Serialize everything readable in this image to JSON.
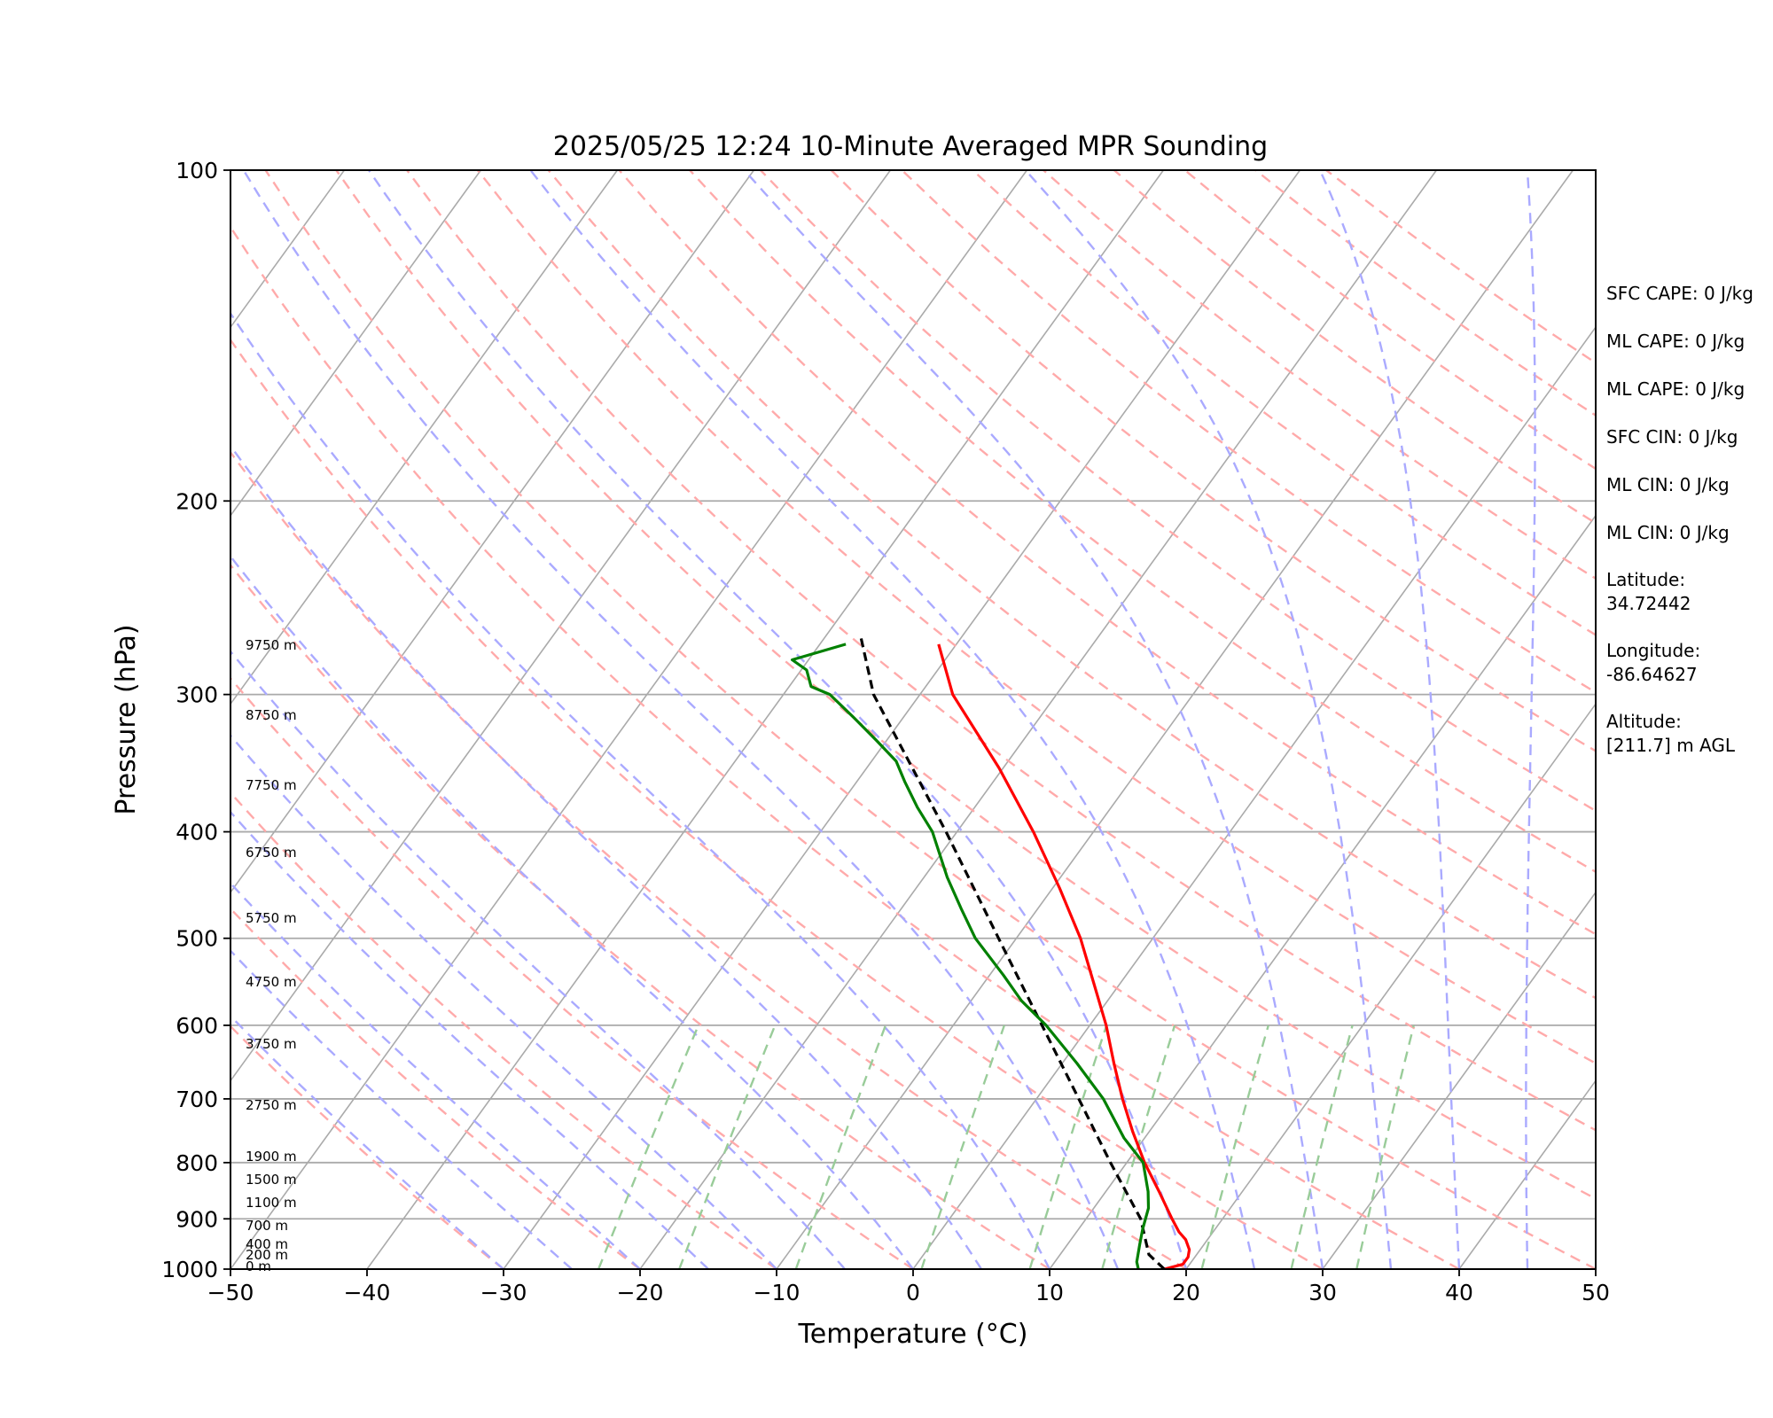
{
  "chart_data": {
    "type": "line",
    "title": "2025/05/25 12:24 10-Minute Averaged MPR Sounding",
    "xlabel": "Temperature (°C)",
    "ylabel": "Pressure (hPa)",
    "xlim": [
      -50,
      50
    ],
    "ylim": [
      1000,
      100
    ],
    "yscale": "log",
    "skew": true,
    "grid": true,
    "x_ticks": [
      "−50",
      "−40",
      "−30",
      "−20",
      "−10",
      "0",
      "10",
      "20",
      "30",
      "40",
      "50"
    ],
    "y_ticks": [
      "100",
      "200",
      "300",
      "400",
      "500",
      "600",
      "700",
      "800",
      "900",
      "1000"
    ],
    "height_labels": [
      "9750 m",
      "8750 m",
      "7750 m",
      "6750 m",
      "5750 m",
      "4750 m",
      "3750 m",
      "2750 m",
      "1900 m",
      "1500 m",
      "1100 m",
      "700 m",
      "400 m",
      "200 m",
      "0 m"
    ],
    "height_label_pressures": [
      281,
      311,
      343,
      377,
      413,
      452,
      494,
      537,
      586,
      618,
      651,
      690,
      718,
      747,
      775
    ],
    "series": [
      {
        "name": "",
        "color": "#ff0000",
        "points": [
          [
            1000,
            18.4
          ],
          [
            990,
            19.5
          ],
          [
            975,
            19.5
          ],
          [
            960,
            19.2
          ],
          [
            940,
            18.4
          ],
          [
            925,
            17.5
          ],
          [
            900,
            16.3
          ],
          [
            850,
            13.9
          ],
          [
            800,
            11.3
          ],
          [
            750,
            8.8
          ],
          [
            700,
            6.3
          ],
          [
            650,
            3.8
          ],
          [
            600,
            1.2
          ],
          [
            550,
            -1.9
          ],
          [
            500,
            -5.3
          ],
          [
            450,
            -9.5
          ],
          [
            400,
            -14.4
          ],
          [
            350,
            -20.3
          ],
          [
            300,
            -27.6
          ],
          [
            270,
            -31.3
          ]
        ]
      },
      {
        "name": "",
        "color": "#000000",
        "dashed": true,
        "points": [
          [
            1000,
            18.4
          ],
          [
            970,
            16.5
          ],
          [
            900,
            14.0
          ],
          [
            800,
            8.8
          ],
          [
            700,
            3.1
          ],
          [
            600,
            -3.5
          ],
          [
            500,
            -11.3
          ],
          [
            400,
            -20.8
          ],
          [
            300,
            -33.4
          ],
          [
            265,
            -37.5
          ]
        ]
      },
      {
        "name": "",
        "color": "#008000",
        "points": [
          [
            1000,
            16.5
          ],
          [
            985,
            16.0
          ],
          [
            950,
            15.3
          ],
          [
            920,
            14.7
          ],
          [
            880,
            14.0
          ],
          [
            850,
            13.1
          ],
          [
            800,
            11.2
          ],
          [
            760,
            8.5
          ],
          [
            700,
            4.9
          ],
          [
            650,
            1.1
          ],
          [
            600,
            -3.2
          ],
          [
            570,
            -6.3
          ],
          [
            540,
            -9.0
          ],
          [
            500,
            -13.0
          ],
          [
            470,
            -15.6
          ],
          [
            440,
            -18.3
          ],
          [
            400,
            -21.8
          ],
          [
            380,
            -24.2
          ],
          [
            360,
            -26.5
          ],
          [
            345,
            -28.2
          ],
          [
            330,
            -30.8
          ],
          [
            315,
            -33.6
          ],
          [
            300,
            -36.6
          ],
          [
            295,
            -38.4
          ],
          [
            285,
            -39.6
          ],
          [
            279,
            -41.2
          ],
          [
            270,
            -38.1
          ]
        ]
      }
    ],
    "parameters": [
      "SFC CAPE: 0 J/kg",
      "ML CAPE: 0 J/kg",
      "ML CAPE: 0 J/kg",
      "SFC CIN: 0 J/kg",
      "ML CIN: 0 J/kg",
      "ML CIN: 0 J/kg",
      "Latitude:",
      "34.72442",
      "Longitude:",
      "-86.64627",
      "Altitude:",
      "[211.7] m AGL"
    ],
    "colors": {
      "isotherm": "#aaaaaa",
      "dry_adiabat": "#ffaaaa",
      "moist_adiabat": "#aaaaff",
      "mixing_ratio": "#99cc99"
    }
  }
}
